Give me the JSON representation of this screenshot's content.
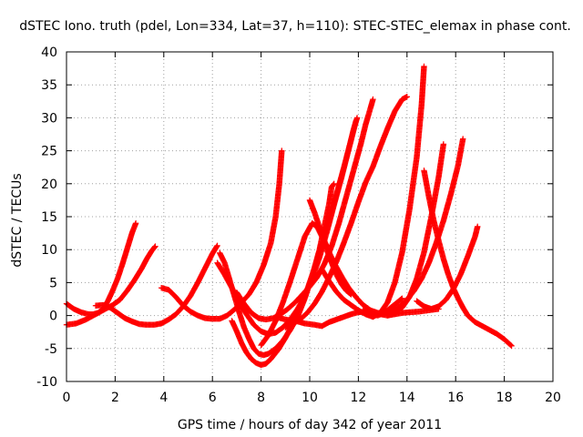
{
  "chart_data": {
    "type": "scatter",
    "title": "dSTEC Iono. truth (pdel, Lon=334, Lat=37, h=110): STEC-STEC_elemax in phase cont.",
    "xlabel": "GPS time / hours of day 342 of year 2011",
    "ylabel": "dSTEC  / TECUs",
    "xlim": [
      0,
      20
    ],
    "ylim": [
      -10,
      40
    ],
    "x_ticks": [
      0,
      2,
      4,
      6,
      8,
      10,
      12,
      14,
      16,
      18,
      20
    ],
    "y_ticks": [
      -10,
      -5,
      0,
      5,
      10,
      15,
      20,
      25,
      30,
      35,
      40
    ],
    "grid": true,
    "color": "#ff0000",
    "marker": "plus",
    "series": [
      {
        "x": [
          0.0,
          0.3,
          0.6,
          0.9,
          1.1,
          1.3,
          1.5,
          1.7,
          1.9,
          2.1,
          2.3,
          2.5,
          2.7,
          2.85
        ],
        "y": [
          1.8,
          1.0,
          0.5,
          0.2,
          0.2,
          0.4,
          1.0,
          2.2,
          3.8,
          5.6,
          7.8,
          10.2,
          12.6,
          14.0
        ]
      },
      {
        "x": [
          0.0,
          0.4,
          0.8,
          1.2,
          1.6,
          1.9,
          2.2,
          2.5,
          2.8,
          3.1,
          3.3,
          3.5,
          3.65
        ],
        "y": [
          -1.4,
          -1.2,
          -0.6,
          0.2,
          1.0,
          1.6,
          2.4,
          3.8,
          5.4,
          7.2,
          8.6,
          9.8,
          10.5
        ]
      },
      {
        "x": [
          1.2,
          1.5,
          1.8,
          2.1,
          2.4,
          2.7,
          3.0,
          3.3,
          3.6,
          3.9,
          4.2,
          4.5,
          4.8,
          5.1,
          5.4,
          5.7,
          6.0,
          6.2
        ],
        "y": [
          1.5,
          1.6,
          1.2,
          0.4,
          -0.4,
          -0.9,
          -1.3,
          -1.4,
          -1.4,
          -1.2,
          -0.6,
          0.2,
          1.4,
          3.0,
          5.0,
          7.2,
          9.4,
          10.6
        ]
      },
      {
        "x": [
          3.9,
          4.2,
          4.5,
          4.8,
          5.1,
          5.4,
          5.7,
          6.0,
          6.3,
          6.6,
          6.9,
          7.2,
          7.5,
          7.8,
          8.1,
          8.4,
          8.6,
          8.75,
          8.85
        ],
        "y": [
          4.2,
          3.9,
          2.8,
          1.5,
          0.6,
          0.0,
          -0.4,
          -0.5,
          -0.5,
          0.0,
          0.9,
          2.0,
          3.2,
          5.0,
          7.6,
          11.0,
          15.0,
          20.0,
          25.0
        ]
      },
      {
        "x": [
          6.3,
          6.5,
          6.7,
          6.9,
          7.1,
          7.3,
          7.5,
          7.7,
          7.9,
          8.1,
          8.3,
          8.6,
          8.9,
          9.2,
          9.5,
          9.8,
          10.1,
          10.4,
          10.6,
          10.8,
          10.9,
          11.0
        ],
        "y": [
          9.5,
          8.0,
          5.5,
          3.0,
          0.5,
          -1.8,
          -3.5,
          -5.0,
          -5.8,
          -6.0,
          -5.8,
          -5.0,
          -3.8,
          -2.2,
          -0.2,
          2.6,
          6.0,
          10.0,
          13.5,
          17.0,
          19.5,
          20.0
        ]
      },
      {
        "x": [
          6.2,
          6.5,
          6.8,
          7.1,
          7.4,
          7.7,
          8.0,
          8.3,
          8.6,
          8.9,
          9.2,
          9.5,
          9.8,
          10.1,
          10.4,
          10.7,
          11.0,
          11.3,
          11.6,
          11.8,
          11.95
        ],
        "y": [
          8.0,
          6.2,
          4.2,
          2.0,
          0.2,
          -1.4,
          -2.4,
          -2.8,
          -2.6,
          -1.8,
          -0.6,
          1.0,
          3.0,
          5.6,
          8.8,
          12.6,
          16.8,
          20.8,
          25.2,
          28.2,
          30.0
        ]
      },
      {
        "x": [
          6.8,
          7.0,
          7.2,
          7.4,
          7.6,
          7.8,
          8.0,
          8.2,
          8.4,
          8.7,
          9.0,
          9.3,
          9.6,
          9.9,
          10.2,
          10.5,
          10.8,
          11.1,
          11.4,
          11.7,
          11.9
        ],
        "y": [
          -0.8,
          -2.4,
          -4.2,
          -5.6,
          -6.6,
          -7.2,
          -7.5,
          -7.3,
          -6.6,
          -5.2,
          -3.4,
          -1.2,
          1.2,
          4.0,
          7.2,
          10.8,
          14.6,
          18.4,
          22.4,
          26.6,
          29.5
        ]
      },
      {
        "x": [
          7.0,
          7.3,
          7.6,
          7.9,
          8.2,
          8.5,
          8.8,
          9.1,
          9.4,
          9.7,
          10.0,
          10.3,
          10.6,
          10.9,
          11.2,
          11.5,
          11.8,
          12.1,
          12.3,
          12.5,
          12.6
        ],
        "y": [
          3.5,
          1.8,
          0.4,
          -0.4,
          -0.6,
          -0.4,
          0.2,
          1.0,
          2.0,
          3.2,
          4.4,
          5.8,
          7.8,
          10.5,
          14.0,
          18.0,
          22.0,
          26.0,
          29.0,
          31.5,
          32.8
        ]
      },
      {
        "x": [
          8.0,
          8.3,
          8.6,
          8.9,
          9.2,
          9.5,
          9.8,
          10.1,
          10.3,
          10.5,
          10.7,
          10.9,
          11.1,
          11.3,
          11.5,
          11.7
        ],
        "y": [
          -4.5,
          -3.0,
          -0.8,
          2.0,
          5.2,
          8.6,
          12.0,
          14.0,
          13.5,
          12.0,
          10.0,
          8.0,
          6.2,
          4.8,
          3.8,
          3.2
        ]
      },
      {
        "x": [
          8.6,
          9.0,
          9.4,
          9.8,
          10.2,
          10.5,
          10.8,
          11.1,
          11.4,
          11.7,
          12.0,
          12.3,
          12.6,
          12.9,
          13.2,
          13.5,
          13.8,
          14.1,
          14.5,
          14.9,
          15.3
        ],
        "y": [
          -0.2,
          -0.6,
          -0.8,
          -1.2,
          -1.4,
          -1.6,
          -1.0,
          -0.6,
          -0.2,
          0.2,
          0.5,
          0.6,
          0.5,
          0.2,
          0.0,
          0.2,
          0.4,
          0.5,
          0.6,
          0.8,
          1.0
        ]
      },
      {
        "x": [
          9.0,
          9.3,
          9.6,
          9.9,
          10.2,
          10.5,
          10.8,
          11.1,
          11.4,
          11.7,
          12.0,
          12.3,
          12.6,
          12.9,
          13.2,
          13.5,
          13.8,
          14.0
        ],
        "y": [
          -1.8,
          -1.2,
          -0.6,
          0.4,
          1.8,
          3.6,
          5.8,
          8.2,
          11.0,
          14.0,
          17.2,
          20.2,
          22.6,
          25.6,
          28.4,
          31.0,
          32.8,
          33.2
        ]
      },
      {
        "x": [
          10.0,
          10.2,
          10.4,
          10.6,
          10.8,
          11.0,
          11.3,
          11.6,
          11.9,
          12.2,
          12.5,
          12.8,
          13.1,
          13.4,
          13.7,
          14.0,
          14.3,
          14.6,
          14.9,
          15.2,
          15.5,
          15.8,
          16.1,
          16.3
        ],
        "y": [
          17.5,
          15.6,
          13.4,
          11.4,
          9.6,
          8.0,
          6.0,
          4.2,
          2.8,
          1.6,
          0.8,
          0.4,
          0.4,
          0.8,
          1.4,
          2.4,
          3.8,
          5.6,
          8.0,
          11.0,
          14.4,
          18.4,
          22.8,
          26.8
        ]
      },
      {
        "x": [
          10.5,
          10.8,
          11.1,
          11.4,
          11.7,
          12.0,
          12.3,
          12.6,
          12.9,
          13.2,
          13.5,
          13.8,
          14.1,
          14.4,
          14.6,
          14.7
        ],
        "y": [
          7.0,
          5.2,
          3.6,
          2.4,
          1.6,
          0.8,
          0.2,
          -0.2,
          0.4,
          2.0,
          5.0,
          9.6,
          16.0,
          24.0,
          32.0,
          37.8
        ]
      },
      {
        "x": [
          12.2,
          12.5,
          12.8,
          13.0,
          13.2,
          13.4,
          13.6,
          13.8
        ],
        "y": [
          0.8,
          0.3,
          0.0,
          0.3,
          0.8,
          1.4,
          2.0,
          2.6
        ]
      },
      {
        "x": [
          13.2,
          13.5,
          13.8,
          14.1,
          14.4,
          14.7,
          15.0,
          15.3,
          15.5
        ],
        "y": [
          0.0,
          0.4,
          1.2,
          2.8,
          5.6,
          9.6,
          15.0,
          21.0,
          26.0
        ]
      },
      {
        "x": [
          14.7,
          14.9,
          15.1,
          15.3,
          15.5,
          15.7,
          15.9,
          16.1,
          16.3,
          16.5,
          16.8,
          17.1,
          17.4,
          17.7,
          18.0,
          18.3
        ],
        "y": [
          22.0,
          18.0,
          14.4,
          11.4,
          8.6,
          6.2,
          4.2,
          2.6,
          1.2,
          0.0,
          -1.0,
          -1.6,
          -2.2,
          -2.8,
          -3.6,
          -4.6
        ]
      },
      {
        "x": [
          14.4,
          14.7,
          15.0,
          15.3,
          15.6,
          15.9,
          16.2,
          16.5,
          16.8,
          16.9
        ],
        "y": [
          2.2,
          1.4,
          1.0,
          1.4,
          2.4,
          4.0,
          6.2,
          9.0,
          12.0,
          13.5
        ]
      }
    ]
  }
}
